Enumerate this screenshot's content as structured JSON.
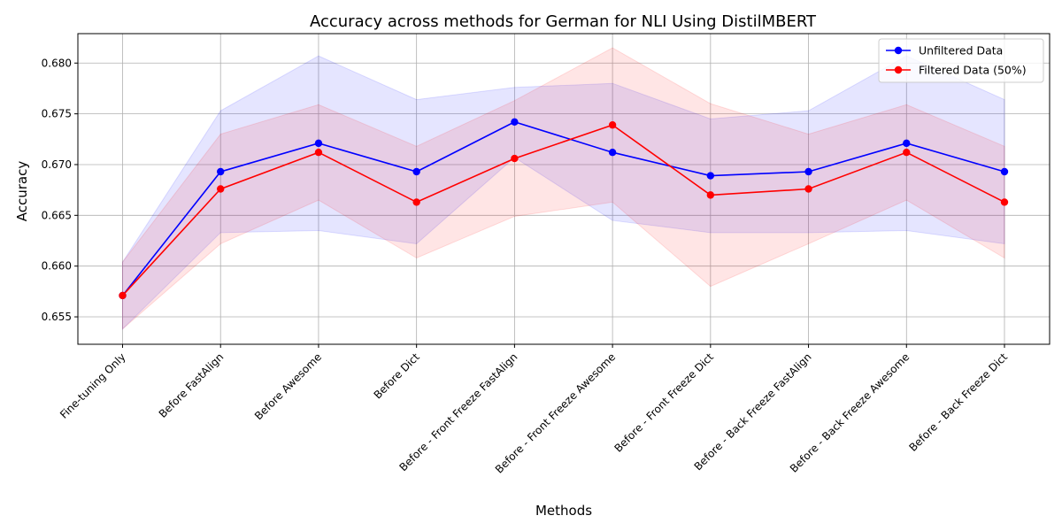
{
  "chart_data": {
    "type": "line",
    "title": "Accuracy across methods for German for NLI Using DistilMBERT",
    "xlabel": "Methods",
    "ylabel": "Accuracy",
    "categories": [
      "Fine-tuning Only",
      "Before FastAlign",
      "Before Awesome",
      "Before Dict",
      "Before - Front Freeze FastAlign",
      "Before - Front Freeze Awesome",
      "Before - Front Freeze Dict",
      "Before - Back Freeze FastAlign",
      "Before - Back Freeze Awesome",
      "Before - Back Freeze Dict"
    ],
    "ylim": [
      0.6523,
      0.6829
    ],
    "yticks": [
      0.655,
      0.66,
      0.665,
      0.67,
      0.675,
      0.68
    ],
    "ytick_labels": [
      "0.655",
      "0.660",
      "0.665",
      "0.670",
      "0.675",
      "0.680"
    ],
    "grid": true,
    "legend_position": "top-right",
    "series": [
      {
        "name": "Unfiltered Data",
        "color": "#0000ff",
        "values": [
          0.6571,
          0.6693,
          0.6721,
          0.6693,
          0.6742,
          0.6712,
          0.6689,
          0.6693,
          0.6721,
          0.6693
        ],
        "lower": [
          0.6538,
          0.6633,
          0.6635,
          0.6622,
          0.6707,
          0.6645,
          0.6633,
          0.6633,
          0.6635,
          0.6622
        ],
        "upper": [
          0.6604,
          0.6753,
          0.6807,
          0.6764,
          0.6776,
          0.678,
          0.6745,
          0.6753,
          0.6807,
          0.6764
        ]
      },
      {
        "name": "Filtered Data (50%)",
        "color": "#ff0000",
        "values": [
          0.6571,
          0.6676,
          0.6712,
          0.6663,
          0.6706,
          0.6739,
          0.667,
          0.6676,
          0.6712,
          0.6663
        ],
        "lower": [
          0.6538,
          0.6622,
          0.6665,
          0.6608,
          0.6649,
          0.6663,
          0.658,
          0.6622,
          0.6665,
          0.6608
        ],
        "upper": [
          0.6604,
          0.673,
          0.6759,
          0.6718,
          0.6763,
          0.6815,
          0.676,
          0.673,
          0.6759,
          0.6718
        ]
      }
    ]
  }
}
